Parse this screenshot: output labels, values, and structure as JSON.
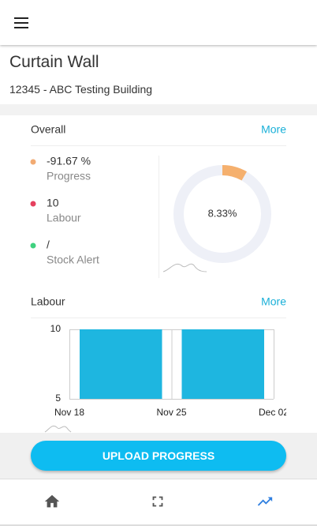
{
  "header": {
    "title": "Curtain Wall",
    "subtitle": "12345 - ABC Testing Building"
  },
  "overall": {
    "title": "Overall",
    "more": "More",
    "stats": [
      {
        "value": "-91.67 %",
        "label": "Progress",
        "color": "#f2ab73"
      },
      {
        "value": "10",
        "label": "Labour",
        "color": "#e5405e"
      },
      {
        "value": "/",
        "label": "Stock Alert",
        "color": "#3fd17f"
      }
    ],
    "donut": {
      "value": 8.33,
      "label": "8.33%",
      "color": "#f5b06e",
      "track": "#eef0f7"
    }
  },
  "labour": {
    "title": "Labour",
    "more": "More",
    "chart": {
      "type": "bar",
      "xticks": [
        "Nov 18",
        "Nov 25",
        "Dec 02"
      ],
      "values": [
        10,
        10
      ],
      "color": "#1eb6e0",
      "ylim": [
        5,
        10
      ],
      "yticks": [
        10,
        5
      ]
    }
  },
  "button": "UPLOAD PROGRESS"
}
